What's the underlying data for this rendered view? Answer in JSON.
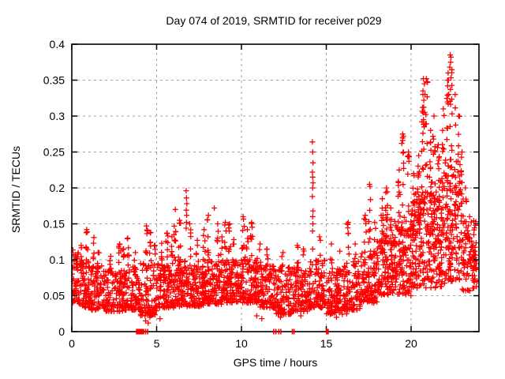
{
  "window": {
    "background": "#ffffff",
    "text_color": "#000000"
  },
  "chart_data": {
    "type": "scatter",
    "title": "Day 074 of 2019, SRMTID for receiver p029",
    "xlabel": "GPS time / hours",
    "ylabel": "SRMTID / TECUs",
    "xlim": [
      0,
      24
    ],
    "ylim": [
      0,
      0.4
    ],
    "xticks": [
      0,
      5,
      10,
      15,
      20
    ],
    "xtick_labels": [
      "0",
      "5",
      "10",
      "15",
      "20"
    ],
    "yticks": [
      0,
      0.05,
      0.1,
      0.15,
      0.2,
      0.25,
      0.3,
      0.35,
      0.4
    ],
    "ytick_labels": [
      "0",
      "0.05",
      "0.1",
      "0.15",
      "0.2",
      "0.25",
      "0.3",
      "0.35",
      "0.4"
    ],
    "grid": true,
    "grid_color": "#a0a0a0",
    "border_color": "#000000",
    "marker": {
      "shape": "plus",
      "color": "#ff0000",
      "size": 7
    },
    "seed": 74,
    "baseline_segments": [
      {
        "h0": 0.0,
        "h1": 0.4,
        "lo": 0.04,
        "hi": 0.115,
        "n": 50,
        "bias": 1.3
      },
      {
        "h0": 0.4,
        "h1": 1.0,
        "lo": 0.033,
        "hi": 0.1,
        "n": 60,
        "bias": 1.4
      },
      {
        "h0": 1,
        "h1": 2,
        "lo": 0.03,
        "hi": 0.092,
        "n": 95,
        "bias": 1.5
      },
      {
        "h0": 2,
        "h1": 3,
        "lo": 0.028,
        "hi": 0.088,
        "n": 95,
        "bias": 1.5
      },
      {
        "h0": 3,
        "h1": 4,
        "lo": 0.03,
        "hi": 0.09,
        "n": 95,
        "bias": 1.5
      },
      {
        "h0": 4,
        "h1": 5,
        "lo": 0.022,
        "hi": 0.095,
        "n": 100,
        "bias": 1.5
      },
      {
        "h0": 5,
        "h1": 6,
        "lo": 0.033,
        "hi": 0.095,
        "n": 100,
        "bias": 1.5
      },
      {
        "h0": 6,
        "h1": 7,
        "lo": 0.035,
        "hi": 0.1,
        "n": 105,
        "bias": 1.5
      },
      {
        "h0": 7,
        "h1": 8,
        "lo": 0.035,
        "hi": 0.095,
        "n": 105,
        "bias": 1.5
      },
      {
        "h0": 8,
        "h1": 9,
        "lo": 0.038,
        "hi": 0.1,
        "n": 105,
        "bias": 1.5
      },
      {
        "h0": 9,
        "h1": 10,
        "lo": 0.04,
        "hi": 0.1,
        "n": 105,
        "bias": 1.5
      },
      {
        "h0": 10,
        "h1": 11,
        "lo": 0.04,
        "hi": 0.105,
        "n": 110,
        "bias": 1.5
      },
      {
        "h0": 11,
        "h1": 12,
        "lo": 0.033,
        "hi": 0.095,
        "n": 100,
        "bias": 1.5
      },
      {
        "h0": 12,
        "h1": 13,
        "lo": 0.024,
        "hi": 0.09,
        "n": 95,
        "bias": 1.5
      },
      {
        "h0": 13,
        "h1": 14,
        "lo": 0.028,
        "hi": 0.095,
        "n": 100,
        "bias": 1.5
      },
      {
        "h0": 14,
        "h1": 15,
        "lo": 0.033,
        "hi": 0.1,
        "n": 100,
        "bias": 1.5
      },
      {
        "h0": 15,
        "h1": 16,
        "lo": 0.024,
        "hi": 0.09,
        "n": 95,
        "bias": 1.5
      },
      {
        "h0": 16,
        "h1": 17,
        "lo": 0.03,
        "hi": 0.1,
        "n": 100,
        "bias": 1.5
      },
      {
        "h0": 17,
        "h1": 18,
        "lo": 0.04,
        "hi": 0.11,
        "n": 105,
        "bias": 1.4
      },
      {
        "h0": 18,
        "h1": 19,
        "lo": 0.05,
        "hi": 0.135,
        "n": 115,
        "bias": 1.3
      },
      {
        "h0": 19,
        "h1": 20,
        "lo": 0.05,
        "hi": 0.155,
        "n": 120,
        "bias": 1.2
      },
      {
        "h0": 20,
        "h1": 21,
        "lo": 0.06,
        "hi": 0.195,
        "n": 130,
        "bias": 1.2
      },
      {
        "h0": 21,
        "h1": 22,
        "lo": 0.06,
        "hi": 0.215,
        "n": 135,
        "bias": 1.2
      },
      {
        "h0": 22,
        "h1": 23,
        "lo": 0.07,
        "hi": 0.24,
        "n": 135,
        "bias": 1.2
      },
      {
        "h0": 23,
        "h1": 23.9,
        "lo": 0.055,
        "hi": 0.155,
        "n": 85,
        "bias": 1.3
      }
    ],
    "columns": [
      [
        0.55,
        0.08,
        0.12,
        5
      ],
      [
        0.88,
        0.09,
        0.142,
        8
      ],
      [
        1.3,
        0.085,
        0.131,
        7
      ],
      [
        1.55,
        0.08,
        0.11,
        5
      ],
      [
        2.3,
        0.075,
        0.105,
        5
      ],
      [
        2.82,
        0.08,
        0.122,
        7
      ],
      [
        3.05,
        0.08,
        0.115,
        5
      ],
      [
        3.3,
        0.085,
        0.13,
        7
      ],
      [
        3.75,
        0.075,
        0.11,
        5
      ],
      [
        4.4,
        0.09,
        0.147,
        8
      ],
      [
        4.65,
        0.085,
        0.138,
        7
      ],
      [
        4.9,
        0.08,
        0.12,
        5
      ],
      [
        5.3,
        0.08,
        0.123,
        6
      ],
      [
        5.6,
        0.085,
        0.137,
        7
      ],
      [
        5.9,
        0.08,
        0.132,
        6
      ],
      [
        6.1,
        0.09,
        0.17,
        9
      ],
      [
        6.35,
        0.09,
        0.155,
        7
      ],
      [
        6.95,
        0.085,
        0.15,
        6
      ],
      [
        7.4,
        0.08,
        0.127,
        6
      ],
      [
        7.8,
        0.085,
        0.142,
        7
      ],
      [
        8.05,
        0.09,
        0.162,
        8
      ],
      [
        8.6,
        0.09,
        0.15,
        6
      ],
      [
        8.85,
        0.08,
        0.132,
        5
      ],
      [
        9.05,
        0.09,
        0.152,
        8
      ],
      [
        9.3,
        0.09,
        0.15,
        8
      ],
      [
        9.55,
        0.08,
        0.128,
        5
      ],
      [
        10.1,
        0.095,
        0.16,
        10
      ],
      [
        10.35,
        0.085,
        0.142,
        6
      ],
      [
        10.6,
        0.09,
        0.152,
        8
      ],
      [
        11.1,
        0.08,
        0.122,
        5
      ],
      [
        11.5,
        0.075,
        0.115,
        4
      ],
      [
        12.45,
        0.075,
        0.11,
        4
      ],
      [
        13.3,
        0.08,
        0.12,
        5
      ],
      [
        13.65,
        0.075,
        0.115,
        4
      ],
      [
        14.6,
        0.08,
        0.132,
        5
      ],
      [
        15.3,
        0.075,
        0.122,
        5
      ],
      [
        15.8,
        0.07,
        0.112,
        4
      ],
      [
        16.3,
        0.085,
        0.152,
        8
      ],
      [
        16.7,
        0.08,
        0.122,
        5
      ],
      [
        17.3,
        0.095,
        0.162,
        8
      ],
      [
        17.55,
        0.1,
        0.205,
        10
      ],
      [
        17.85,
        0.09,
        0.152,
        6
      ],
      [
        18.3,
        0.11,
        0.185,
        10
      ],
      [
        18.55,
        0.12,
        0.2,
        12
      ],
      [
        18.8,
        0.11,
        0.172,
        8
      ],
      [
        19.3,
        0.12,
        0.225,
        10
      ],
      [
        19.55,
        0.13,
        0.272,
        10
      ],
      [
        19.85,
        0.12,
        0.25,
        10
      ],
      [
        20.15,
        0.12,
        0.22,
        10
      ],
      [
        20.45,
        0.13,
        0.245,
        10
      ],
      [
        20.7,
        0.15,
        0.33,
        14
      ],
      [
        20.9,
        0.16,
        0.352,
        12
      ],
      [
        21.15,
        0.14,
        0.28,
        10
      ],
      [
        21.35,
        0.14,
        0.3,
        10
      ],
      [
        21.6,
        0.13,
        0.26,
        10
      ],
      [
        21.9,
        0.14,
        0.31,
        12
      ],
      [
        22.15,
        0.15,
        0.35,
        12
      ],
      [
        22.35,
        0.16,
        0.382,
        12
      ],
      [
        22.6,
        0.15,
        0.33,
        10
      ],
      [
        22.8,
        0.14,
        0.3,
        10
      ],
      [
        23.0,
        0.12,
        0.25,
        8
      ],
      [
        23.2,
        0.1,
        0.2,
        6
      ],
      [
        23.45,
        0.09,
        0.16,
        6
      ],
      [
        23.7,
        0.08,
        0.135,
        5
      ]
    ],
    "extra_points": [
      [
        14.18,
        0.264
      ],
      [
        14.2,
        0.25
      ],
      [
        14.22,
        0.235
      ],
      [
        14.18,
        0.222
      ],
      [
        14.2,
        0.215
      ],
      [
        14.22,
        0.207
      ],
      [
        14.2,
        0.2
      ],
      [
        14.18,
        0.188
      ],
      [
        14.22,
        0.168
      ],
      [
        14.2,
        0.16
      ],
      [
        14.21,
        0.15
      ],
      [
        14.19,
        0.14
      ],
      [
        14.2,
        0.115
      ],
      [
        6.74,
        0.196
      ],
      [
        6.76,
        0.186
      ],
      [
        6.78,
        0.178
      ],
      [
        6.75,
        0.169
      ],
      [
        6.77,
        0.162
      ],
      [
        6.76,
        0.152
      ],
      [
        6.74,
        0.144
      ],
      [
        8.4,
        0.172
      ],
      [
        22.3,
        0.385
      ],
      [
        22.33,
        0.375
      ],
      [
        22.28,
        0.368
      ],
      [
        22.18,
        0.36
      ],
      [
        22.2,
        0.35
      ],
      [
        22.16,
        0.342
      ],
      [
        22.32,
        0.337
      ],
      [
        20.72,
        0.352
      ],
      [
        20.78,
        0.345
      ],
      [
        20.7,
        0.335
      ],
      [
        20.82,
        0.33
      ],
      [
        20.75,
        0.322
      ],
      [
        20.68,
        0.312
      ],
      [
        20.8,
        0.305
      ],
      [
        20.73,
        0.295
      ],
      [
        20.77,
        0.285
      ],
      [
        20.7,
        0.276
      ],
      [
        19.5,
        0.275
      ],
      [
        19.45,
        0.262
      ],
      [
        19.55,
        0.25
      ],
      [
        4.35,
        0.015
      ],
      [
        4.5,
        0.012
      ],
      [
        4.6,
        0.02
      ],
      [
        5.2,
        0.018
      ],
      [
        10.9,
        0.022
      ],
      [
        11.2,
        0.018
      ],
      [
        12.3,
        0.02
      ],
      [
        13.5,
        0.022
      ],
      [
        15.6,
        0.02
      ],
      [
        16.2,
        0.025
      ]
    ],
    "zero_markers": {
      "blocks": [
        [
          3.78,
          4.27
        ],
        [
          14.98,
          15.15
        ]
      ],
      "ticks": [
        4.35,
        4.47,
        11.9,
        12.03,
        12.2,
        12.32,
        13.0,
        13.1
      ]
    }
  }
}
